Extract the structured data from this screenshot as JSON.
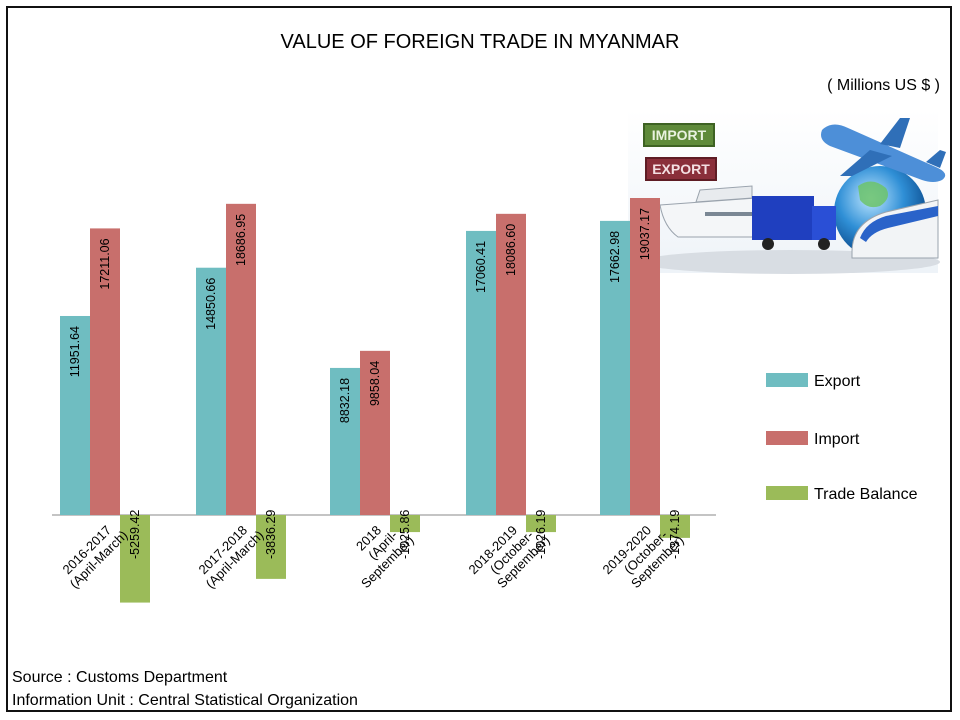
{
  "chart_data": {
    "type": "bar",
    "title": "VALUE OF FOREIGN TRADE  IN MYANMAR",
    "unit": "( Millions US $ )",
    "categories": [
      [
        "2016-2017",
        "(April-March)"
      ],
      [
        "2017-2018",
        "(April-March)"
      ],
      [
        "2018",
        "(April-",
        "September)"
      ],
      [
        "2018-2019",
        "(October-",
        "September)"
      ],
      [
        "2019-2020",
        "(October-",
        "September)"
      ]
    ],
    "series": [
      {
        "name": "Export",
        "color": "#6fbdc1",
        "values": [
          11951.64,
          14850.66,
          8832.18,
          17060.41,
          17662.98
        ],
        "labels": [
          "11951.64",
          "14850.66",
          "8832.18",
          "17060.41",
          "17662.98"
        ]
      },
      {
        "name": "Import",
        "color": "#c86f6c",
        "values": [
          17211.06,
          18686.95,
          9858.04,
          18086.6,
          19037.17
        ],
        "labels": [
          "17211.06",
          "18686.95",
          "9858.04",
          "18086.60",
          "19037.17"
        ]
      },
      {
        "name": "Trade Balance",
        "color": "#9bbb59",
        "values": [
          -5259.42,
          -3836.29,
          -1025.86,
          -1026.19,
          -1374.19
        ],
        "labels": [
          "-5259.42",
          "-3836.29",
          "-1025.86",
          "-1026.19",
          "-1374.19"
        ]
      }
    ],
    "ylim": [
      -5259.42,
      19037.17
    ],
    "grid": false,
    "legend_position": "right"
  },
  "image": {
    "badges": [
      "IMPORT",
      "EXPORT"
    ]
  },
  "footer": {
    "source": "Source : Customs Department",
    "info": "Information Unit : Central Statistical Organization"
  }
}
